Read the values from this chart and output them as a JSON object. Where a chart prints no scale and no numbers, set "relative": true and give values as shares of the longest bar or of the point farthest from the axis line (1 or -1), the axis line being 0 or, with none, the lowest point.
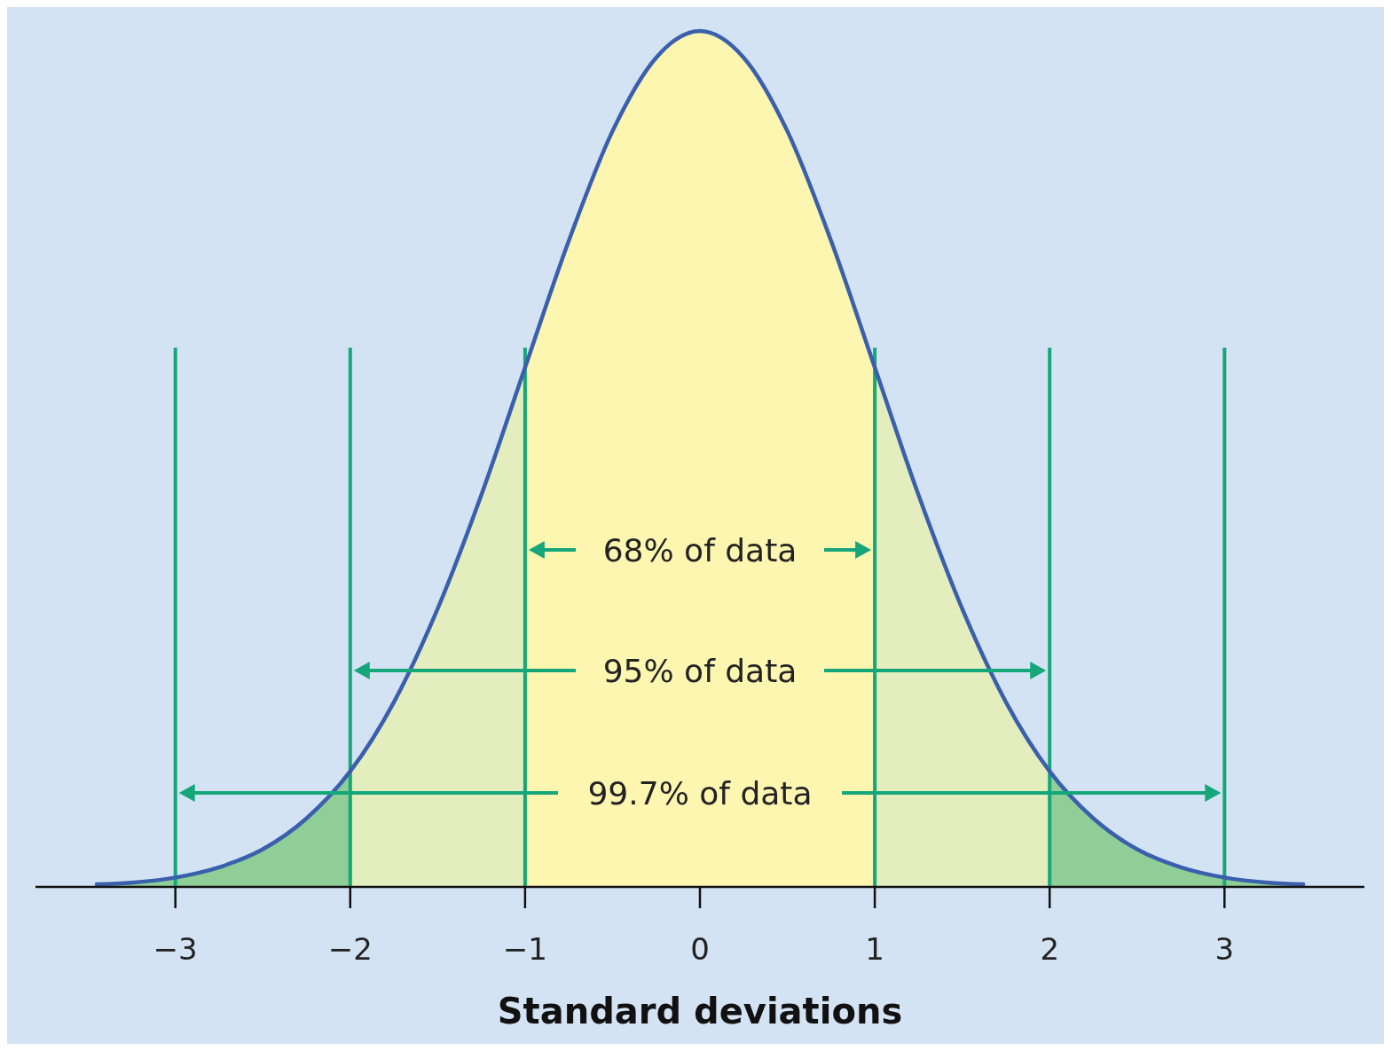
{
  "chart_data": {
    "type": "area",
    "relative": true,
    "xlabel": "Standard deviations",
    "xlim": [
      -3.8,
      3.8
    ],
    "xticks": [
      {
        "value": -3,
        "label": "−3"
      },
      {
        "value": -2,
        "label": "−2"
      },
      {
        "value": -1,
        "label": "−1"
      },
      0,
      1,
      2,
      3
    ],
    "tick_labels": "x",
    "series": [
      {
        "color": "#8fce96",
        "x": [
          -3.45,
          -3.25,
          -3,
          -2.75,
          -2.5,
          -2.25,
          -2
        ],
        "values": [
          0.003,
          0.005,
          0.011,
          0.023,
          0.044,
          0.08,
          0.135
        ]
      },
      {
        "color": "#e3edbd",
        "x": [
          -2,
          -1.75,
          -1.5,
          -1.25,
          -1
        ],
        "values": [
          0.135,
          0.216,
          0.325,
          0.458,
          0.607
        ]
      },
      {
        "color": "#fdf6b0",
        "x": [
          -1,
          -0.75,
          -0.5,
          -0.25,
          0,
          0.25,
          0.5,
          0.75,
          1
        ],
        "values": [
          0.607,
          0.755,
          0.883,
          0.969,
          1,
          0.969,
          0.883,
          0.755,
          0.607
        ]
      },
      {
        "color": "#e3edbd",
        "x": [
          1,
          1.25,
          1.5,
          1.75,
          2
        ],
        "values": [
          0.607,
          0.458,
          0.325,
          0.216,
          0.135
        ]
      },
      {
        "color": "#8fce96",
        "x": [
          2,
          2.25,
          2.5,
          2.75,
          3,
          3.25,
          3.45
        ],
        "values": [
          0.135,
          0.08,
          0.044,
          0.023,
          0.011,
          0.005,
          0.003
        ]
      },
      {
        "type": "line",
        "color": "#3a5fad",
        "x": [
          -3.45,
          -3.25,
          -3,
          -2.75,
          -2.5,
          -2.25,
          -2,
          -1.75,
          -1.5,
          -1.25,
          -1,
          -0.75,
          -0.5,
          -0.25,
          0,
          0.25,
          0.5,
          0.75,
          1,
          1.25,
          1.5,
          1.75,
          2,
          2.25,
          2.5,
          2.75,
          3,
          3.25,
          3.45
        ],
        "values": [
          0.003,
          0.005,
          0.011,
          0.023,
          0.044,
          0.08,
          0.135,
          0.216,
          0.325,
          0.458,
          0.607,
          0.755,
          0.883,
          0.969,
          1,
          0.969,
          0.883,
          0.755,
          0.607,
          0.458,
          0.325,
          0.216,
          0.135,
          0.08,
          0.044,
          0.023,
          0.011,
          0.005,
          0.003
        ]
      }
    ],
    "ref_lines": [
      {
        "axis": "x",
        "value": -3,
        "color": "#15a77a"
      },
      {
        "axis": "x",
        "value": -2,
        "color": "#15a77a"
      },
      {
        "axis": "x",
        "value": -1,
        "color": "#15a77a"
      },
      {
        "axis": "x",
        "value": 1,
        "color": "#15a77a"
      },
      {
        "axis": "x",
        "value": 2,
        "color": "#15a77a"
      },
      {
        "axis": "x",
        "value": 3,
        "color": "#15a77a"
      }
    ],
    "annotations": [
      "68% of data",
      "95% of data",
      "99.7% of data"
    ]
  }
}
